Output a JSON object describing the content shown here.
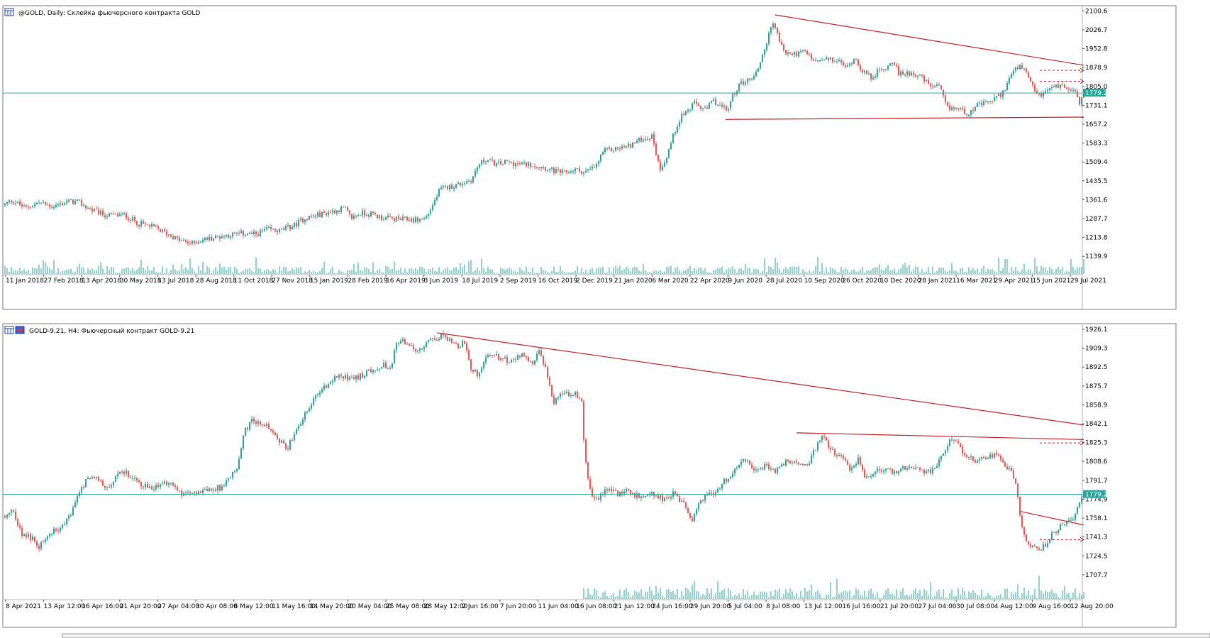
{
  "colors": {
    "bull": "#26a69a",
    "bear": "#ef5350",
    "trendline": "#c0202a",
    "price_line": "#26a69a",
    "volume": "#26a69a",
    "frame": "#7a7a7a",
    "icon_blue": "#1e3faa"
  },
  "chart_data": [
    {
      "type": "candlestick",
      "title": "@GOLD, Daily:  Склейка фьючерсного контракта GOLD",
      "icon": "chart-window-icon",
      "y_axis_labels": [
        "2100.6",
        "2026.7",
        "1952.8",
        "1878.9",
        "1805.0",
        "1731.1",
        "1657.2",
        "1583.3",
        "1509.4",
        "1435.5",
        "1361.6",
        "1287.7",
        "1213.8",
        "1139.9"
      ],
      "ylim": [
        1110,
        2110
      ],
      "current_price": 1779.2,
      "current_price_label": "1779.2",
      "x_labels": [
        "11 Jan 2018",
        "27 Feb 2018",
        "13 Apr 2018",
        "30 May 2018",
        "13 Jul 2018",
        "28 Aug 2018",
        "11 Oct 2018",
        "27 Nov 2018",
        "15 Jan 2019",
        "28 Feb 2019",
        "16 Apr 2019",
        "3 Jun 2019",
        "18 Jul 2019",
        "2 Sep 2019",
        "16 Oct 2019",
        "2 Dec 2019",
        "21 Jan 2020",
        "6 Mar 2020",
        "22 Apr 2020",
        "9 Jun 2020",
        "28 Jul 2020",
        "10 Sep 2020",
        "26 Oct 2020",
        "10 Dec 2020",
        "28 Jan 2021",
        "16 Mar 2021",
        "29 Apr 2021",
        "15 Jun 2021",
        "29 Jul 2021"
      ],
      "anchors": [
        [
          0,
          1340
        ],
        [
          12,
          1360
        ],
        [
          30,
          1330
        ],
        [
          50,
          1350
        ],
        [
          70,
          1335
        ],
        [
          90,
          1355
        ],
        [
          105,
          1352
        ],
        [
          125,
          1320
        ],
        [
          145,
          1300
        ],
        [
          170,
          1302
        ],
        [
          190,
          1270
        ],
        [
          210,
          1255
        ],
        [
          230,
          1230
        ],
        [
          250,
          1200
        ],
        [
          265,
          1190
        ],
        [
          280,
          1205
        ],
        [
          300,
          1215
        ],
        [
          320,
          1225
        ],
        [
          340,
          1230
        ],
        [
          355,
          1225
        ],
        [
          370,
          1245
        ],
        [
          390,
          1240
        ],
        [
          410,
          1262
        ],
        [
          425,
          1290
        ],
        [
          440,
          1300
        ],
        [
          455,
          1310
        ],
        [
          470,
          1320
        ],
        [
          480,
          1330
        ],
        [
          490,
          1290
        ],
        [
          505,
          1310
        ],
        [
          520,
          1305
        ],
        [
          535,
          1290
        ],
        [
          560,
          1285
        ],
        [
          585,
          1283
        ],
        [
          595,
          1290
        ],
        [
          605,
          1340
        ],
        [
          615,
          1400
        ],
        [
          625,
          1410
        ],
        [
          640,
          1420
        ],
        [
          660,
          1440
        ],
        [
          670,
          1500
        ],
        [
          680,
          1520
        ],
        [
          695,
          1500
        ],
        [
          710,
          1510
        ],
        [
          725,
          1500
        ],
        [
          745,
          1500
        ],
        [
          760,
          1490
        ],
        [
          775,
          1475
        ],
        [
          790,
          1465
        ],
        [
          805,
          1480
        ],
        [
          820,
          1470
        ],
        [
          835,
          1490
        ],
        [
          845,
          1550
        ],
        [
          860,
          1560
        ],
        [
          880,
          1570
        ],
        [
          900,
          1600
        ],
        [
          915,
          1610
        ],
        [
          925,
          1480
        ],
        [
          935,
          1530
        ],
        [
          945,
          1620
        ],
        [
          955,
          1690
        ],
        [
          965,
          1710
        ],
        [
          975,
          1740
        ],
        [
          990,
          1710
        ],
        [
          1000,
          1750
        ],
        [
          1010,
          1730
        ],
        [
          1020,
          1710
        ],
        [
          1030,
          1780
        ],
        [
          1040,
          1820
        ],
        [
          1050,
          1830
        ],
        [
          1060,
          1850
        ],
        [
          1068,
          1910
        ],
        [
          1075,
          1970
        ],
        [
          1085,
          2060
        ],
        [
          1092,
          2000
        ],
        [
          1100,
          1940
        ],
        [
          1112,
          1930
        ],
        [
          1130,
          1940
        ],
        [
          1145,
          1900
        ],
        [
          1160,
          1910
        ],
        [
          1175,
          1905
        ],
        [
          1190,
          1880
        ],
        [
          1200,
          1920
        ],
        [
          1210,
          1870
        ],
        [
          1222,
          1840
        ],
        [
          1232,
          1860
        ],
        [
          1245,
          1880
        ],
        [
          1255,
          1910
        ],
        [
          1262,
          1850
        ],
        [
          1275,
          1860
        ],
        [
          1290,
          1850
        ],
        [
          1305,
          1810
        ],
        [
          1320,
          1800
        ],
        [
          1330,
          1720
        ],
        [
          1345,
          1720
        ],
        [
          1360,
          1700
        ],
        [
          1372,
          1730
        ],
        [
          1385,
          1740
        ],
        [
          1400,
          1760
        ],
        [
          1410,
          1785
        ],
        [
          1420,
          1850
        ],
        [
          1430,
          1880
        ],
        [
          1440,
          1870
        ],
        [
          1445,
          1830
        ],
        [
          1455,
          1780
        ],
        [
          1465,
          1770
        ],
        [
          1475,
          1800
        ],
        [
          1490,
          1810
        ],
        [
          1500,
          1800
        ],
        [
          1510,
          1800
        ],
        [
          1516,
          1730
        ],
        [
          1523,
          1779
        ]
      ],
      "volume_range": [
        1,
        24
      ],
      "trendlines": [
        {
          "from": [
            1087,
            2085
          ],
          "to": [
            1522,
            1888
          ]
        },
        {
          "from": [
            1017,
            1676
          ],
          "to": [
            1522,
            1685
          ]
        }
      ],
      "dashed_levels": [
        {
          "from": 1460,
          "to": 1522,
          "price": 1868
        },
        {
          "from": 1460,
          "to": 1522,
          "price": 1825
        }
      ]
    },
    {
      "type": "candlestick",
      "title": "GOLD-9.21, H4:  Фьючерсный контракт GOLD-9.21",
      "icon": "chart-window-icon",
      "y_axis_labels": [
        "1926.1",
        "1909.3",
        "1892.5",
        "1875.7",
        "1858.9",
        "1842.1",
        "1825.3",
        "1808.6",
        "1791.7",
        "1774.9",
        "1758.1",
        "1741.3",
        "1724.5",
        "1707.7"
      ],
      "ylim": [
        1695,
        1928
      ],
      "current_price": 1779.2,
      "current_price_label": "1779.2",
      "x_labels": [
        "8 Apr 2021",
        "13 Apr 12:00",
        "16 Apr 16:00",
        "21 Apr 20:00",
        "27 Apr 04:00",
        "30 Apr 08:00",
        "6 May 12:00",
        "11 May 16:00",
        "14 May 20:00",
        "20 May 04:00",
        "25 May 08:00",
        "28 May 12:00",
        "2 Jun 16:00",
        "7 Jun 20:00",
        "11 Jun 04:00",
        "16 Jun 08:00",
        "21 Jun 12:00",
        "24 Jun 16:00",
        "29 Jun 20:00",
        "5 Jul 04:00",
        "8 Jul 08:00",
        "13 Jul 12:00",
        "16 Jul 16:00",
        "21 Jul 20:00",
        "27 Jul 04:00",
        "30 Jul 08:00",
        "4 Aug 12:00",
        "9 Aug 16:00",
        "12 Aug 20:00"
      ],
      "anchors": [
        [
          0,
          1760
        ],
        [
          12,
          1765
        ],
        [
          25,
          1745
        ],
        [
          40,
          1740
        ],
        [
          50,
          1732
        ],
        [
          60,
          1742
        ],
        [
          80,
          1750
        ],
        [
          95,
          1760
        ],
        [
          105,
          1780
        ],
        [
          115,
          1790
        ],
        [
          130,
          1795
        ],
        [
          145,
          1785
        ],
        [
          160,
          1795
        ],
        [
          170,
          1800
        ],
        [
          190,
          1790
        ],
        [
          210,
          1785
        ],
        [
          230,
          1790
        ],
        [
          250,
          1780
        ],
        [
          270,
          1780
        ],
        [
          290,
          1785
        ],
        [
          305,
          1785
        ],
        [
          320,
          1795
        ],
        [
          330,
          1805
        ],
        [
          340,
          1835
        ],
        [
          350,
          1845
        ],
        [
          370,
          1840
        ],
        [
          385,
          1830
        ],
        [
          400,
          1820
        ],
        [
          415,
          1840
        ],
        [
          430,
          1855
        ],
        [
          445,
          1870
        ],
        [
          460,
          1880
        ],
        [
          475,
          1885
        ],
        [
          490,
          1882
        ],
        [
          505,
          1885
        ],
        [
          520,
          1890
        ],
        [
          535,
          1895
        ],
        [
          545,
          1890
        ],
        [
          555,
          1915
        ],
        [
          570,
          1915
        ],
        [
          580,
          1905
        ],
        [
          590,
          1908
        ],
        [
          600,
          1915
        ],
        [
          610,
          1918
        ],
        [
          620,
          1922
        ],
        [
          630,
          1915
        ],
        [
          640,
          1910
        ],
        [
          650,
          1915
        ],
        [
          660,
          1890
        ],
        [
          670,
          1885
        ],
        [
          680,
          1900
        ],
        [
          690,
          1905
        ],
        [
          700,
          1900
        ],
        [
          715,
          1898
        ],
        [
          730,
          1903
        ],
        [
          745,
          1895
        ],
        [
          755,
          1905
        ],
        [
          765,
          1890
        ],
        [
          775,
          1860
        ],
        [
          785,
          1870
        ],
        [
          795,
          1868
        ],
        [
          805,
          1870
        ],
        [
          815,
          1860
        ],
        [
          820,
          1810
        ],
        [
          828,
          1780
        ],
        [
          838,
          1775
        ],
        [
          850,
          1785
        ],
        [
          865,
          1780
        ],
        [
          880,
          1782
        ],
        [
          900,
          1775
        ],
        [
          915,
          1780
        ],
        [
          930,
          1775
        ],
        [
          945,
          1780
        ],
        [
          960,
          1770
        ],
        [
          970,
          1755
        ],
        [
          980,
          1770
        ],
        [
          990,
          1780
        ],
        [
          1000,
          1780
        ],
        [
          1015,
          1790
        ],
        [
          1030,
          1800
        ],
        [
          1045,
          1810
        ],
        [
          1060,
          1800
        ],
        [
          1075,
          1805
        ],
        [
          1090,
          1800
        ],
        [
          1105,
          1810
        ],
        [
          1120,
          1805
        ],
        [
          1135,
          1808
        ],
        [
          1145,
          1820
        ],
        [
          1155,
          1830
        ],
        [
          1165,
          1820
        ],
        [
          1175,
          1815
        ],
        [
          1185,
          1810
        ],
        [
          1195,
          1800
        ],
        [
          1205,
          1810
        ],
        [
          1215,
          1795
        ],
        [
          1230,
          1800
        ],
        [
          1245,
          1800
        ],
        [
          1260,
          1800
        ],
        [
          1280,
          1805
        ],
        [
          1295,
          1800
        ],
        [
          1310,
          1800
        ],
        [
          1325,
          1815
        ],
        [
          1335,
          1830
        ],
        [
          1345,
          1825
        ],
        [
          1355,
          1815
        ],
        [
          1370,
          1810
        ],
        [
          1385,
          1812
        ],
        [
          1400,
          1815
        ],
        [
          1410,
          1805
        ],
        [
          1420,
          1800
        ],
        [
          1428,
          1790
        ],
        [
          1433,
          1760
        ],
        [
          1440,
          1740
        ],
        [
          1448,
          1732
        ],
        [
          1460,
          1730
        ],
        [
          1470,
          1735
        ],
        [
          1480,
          1745
        ],
        [
          1490,
          1750
        ],
        [
          1500,
          1755
        ],
        [
          1510,
          1758
        ],
        [
          1516,
          1770
        ],
        [
          1522,
          1779
        ]
      ],
      "volume_start": 815,
      "volume_range": [
        1,
        33
      ],
      "trendlines": [
        {
          "from": [
            610,
            1923
          ],
          "to": [
            1522,
            1841
          ]
        },
        {
          "from": [
            1117,
            1834
          ],
          "to": [
            1522,
            1828
          ]
        },
        {
          "from": [
            1433,
            1764
          ],
          "to": [
            1522,
            1752
          ]
        }
      ],
      "dashed_levels": [
        {
          "from": 1460,
          "to": 1522,
          "price": 1825
        },
        {
          "from": 1460,
          "to": 1522,
          "price": 1739
        }
      ]
    }
  ]
}
